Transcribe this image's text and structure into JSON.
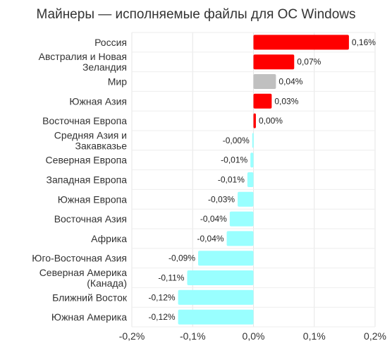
{
  "chart_data": {
    "type": "bar",
    "orientation": "horizontal",
    "title": "Майнеры — исполняемые файлы для ОС Windows",
    "categories": [
      [
        "Россия"
      ],
      [
        "Австралия и Новая",
        "Зеландия"
      ],
      [
        "Мир"
      ],
      [
        "Южная Азия"
      ],
      [
        "Восточная Европа"
      ],
      [
        "Средняя Азия и",
        "Закавказье"
      ],
      [
        "Северная Европа"
      ],
      [
        "Западная Европа"
      ],
      [
        "Южная Европа"
      ],
      [
        "Восточная Азия"
      ],
      [
        "Африка"
      ],
      [
        "Юго-Восточная Азия"
      ],
      [
        "Северная Америка",
        "(Канада)"
      ],
      [
        "Ближний Восток"
      ],
      [
        "Южная Америка"
      ]
    ],
    "values": [
      0.157,
      0.067,
      0.037,
      0.03,
      0.004,
      -0.002,
      -0.005,
      -0.01,
      -0.026,
      -0.039,
      -0.044,
      -0.091,
      -0.109,
      -0.124,
      -0.124
    ],
    "value_labels": [
      "0,16%",
      "0,07%",
      "0,04%",
      "0,03%",
      "0,00%",
      "-0,00%",
      "-0,01%",
      "-0,01%",
      "-0,03%",
      "-0,04%",
      "-0,04%",
      "-0,09%",
      "-0,11%",
      "-0,12%",
      "-0,12%"
    ],
    "bar_colors": [
      "#ff0000",
      "#ff0000",
      "#c0c0c0",
      "#ff0000",
      "#ff0000",
      "#99ffff",
      "#99ffff",
      "#99ffff",
      "#99ffff",
      "#99ffff",
      "#99ffff",
      "#99ffff",
      "#99ffff",
      "#99ffff",
      "#99ffff"
    ],
    "xlim": [
      -0.2,
      0.2
    ],
    "xticks": [
      -0.2,
      -0.1,
      0.0,
      0.1,
      0.2
    ],
    "xtick_labels": [
      "-0,2%",
      "-0,1%",
      "0,0%",
      "0,1%",
      "0,2%"
    ],
    "grid": true,
    "legend": "none"
  }
}
